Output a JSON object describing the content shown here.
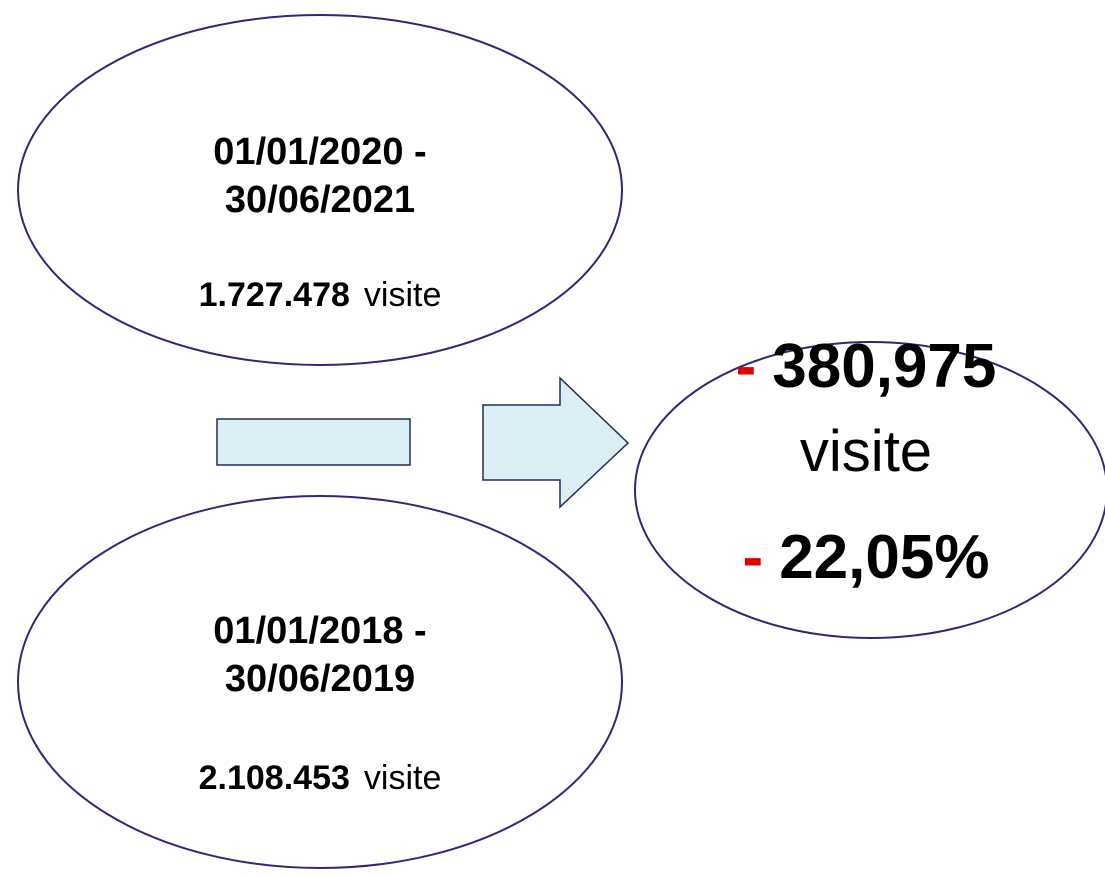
{
  "period_current": {
    "lines": [
      "01/01/2020 -",
      "30/06/2021"
    ],
    "count": "1.727.478",
    "unit": "visite"
  },
  "period_previous": {
    "lines": [
      "01/01/2018 -",
      "30/06/2019"
    ],
    "count": "2.108.453",
    "unit": "visite"
  },
  "result": {
    "difference_sign": "-",
    "difference": "380,975",
    "unit": "visite",
    "percent_sign": "-",
    "percent": "22,05%"
  }
}
